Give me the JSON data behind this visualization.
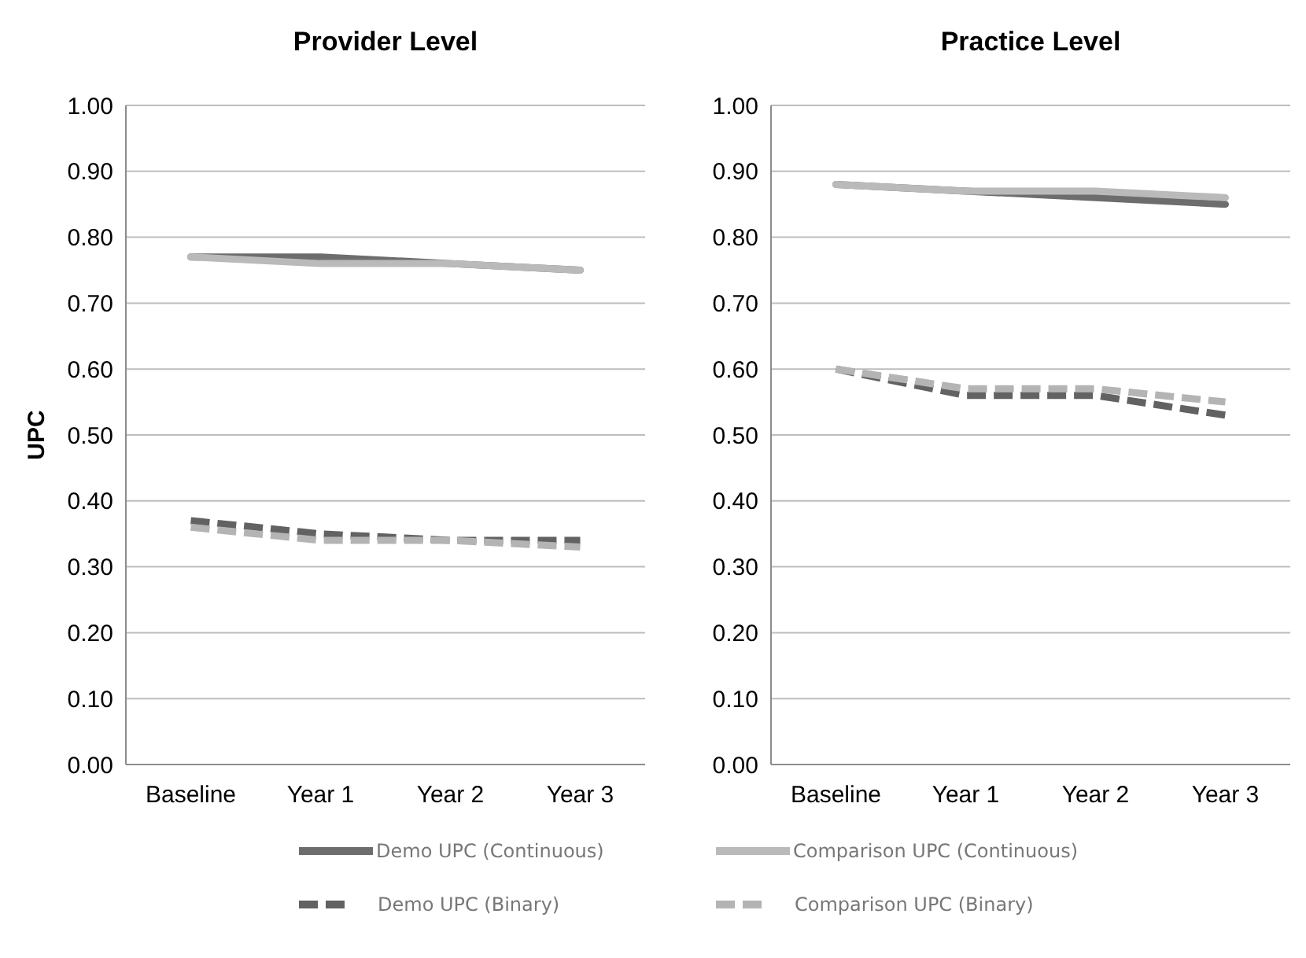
{
  "chart_data": [
    {
      "type": "line",
      "title": "Provider Level",
      "ylabel": "UPC",
      "categories": [
        "Baseline",
        "Year 1",
        "Year 2",
        "Year 3"
      ],
      "ylim": [
        0,
        1
      ],
      "yticks": [
        {
          "value": 0,
          "label": "0.00"
        },
        {
          "value": 0.1,
          "label": "0.10"
        },
        {
          "value": 0.2,
          "label": "0.20"
        },
        {
          "value": 0.3,
          "label": "0.30"
        },
        {
          "value": 0.4,
          "label": "0.40"
        },
        {
          "value": 0.5,
          "label": "0.50"
        },
        {
          "value": 0.6,
          "label": "0.60"
        },
        {
          "value": 0.7,
          "label": "0.70"
        },
        {
          "value": 0.8,
          "label": "0.80"
        },
        {
          "value": 0.9,
          "label": "0.90"
        },
        {
          "value": 1,
          "label": "1.00"
        }
      ],
      "grid": "y",
      "legend": "bottom",
      "marker": "none",
      "series": [
        {
          "name": "Demo UPC (Continuous)",
          "color": "#6d6d6d",
          "line_style": "solid",
          "values": [
            0.77,
            0.77,
            0.76,
            0.75
          ]
        },
        {
          "name": "Comparison UPC (Continuous)",
          "color": "#bababa",
          "line_style": "solid",
          "values": [
            0.77,
            0.76,
            0.76,
            0.75
          ]
        },
        {
          "name": "Demo UPC (Binary)",
          "color": "#626262",
          "line_style": "dashed",
          "values": [
            0.37,
            0.35,
            0.34,
            0.34
          ]
        },
        {
          "name": "Comparison UPC (Binary)",
          "color": "#b4b4b4",
          "line_style": "dashed",
          "values": [
            0.36,
            0.34,
            0.34,
            0.33
          ]
        }
      ]
    },
    {
      "type": "line",
      "title": "Practice Level",
      "categories": [
        "Baseline",
        "Year 1",
        "Year 2",
        "Year 3"
      ],
      "ylim": [
        0,
        1
      ],
      "yticks": [
        {
          "value": 0,
          "label": "0.00"
        },
        {
          "value": 0.1,
          "label": "0.10"
        },
        {
          "value": 0.2,
          "label": "0.20"
        },
        {
          "value": 0.3,
          "label": "0.30"
        },
        {
          "value": 0.4,
          "label": "0.40"
        },
        {
          "value": 0.5,
          "label": "0.50"
        },
        {
          "value": 0.6,
          "label": "0.60"
        },
        {
          "value": 0.7,
          "label": "0.70"
        },
        {
          "value": 0.8,
          "label": "0.80"
        },
        {
          "value": 0.9,
          "label": "0.90"
        },
        {
          "value": 1,
          "label": "1.00"
        }
      ],
      "grid": "y",
      "marker": "none",
      "series": [
        {
          "color": "#6d6d6d",
          "line_style": "solid",
          "values": [
            0.88,
            0.87,
            0.86,
            0.85
          ]
        },
        {
          "color": "#bababa",
          "line_style": "solid",
          "values": [
            0.88,
            0.87,
            0.87,
            0.86
          ]
        },
        {
          "color": "#626262",
          "line_style": "dashed",
          "values": [
            0.6,
            0.56,
            0.56,
            0.53
          ]
        },
        {
          "color": "#b4b4b4",
          "line_style": "dashed",
          "values": [
            0.6,
            0.57,
            0.57,
            0.55
          ]
        }
      ]
    }
  ]
}
